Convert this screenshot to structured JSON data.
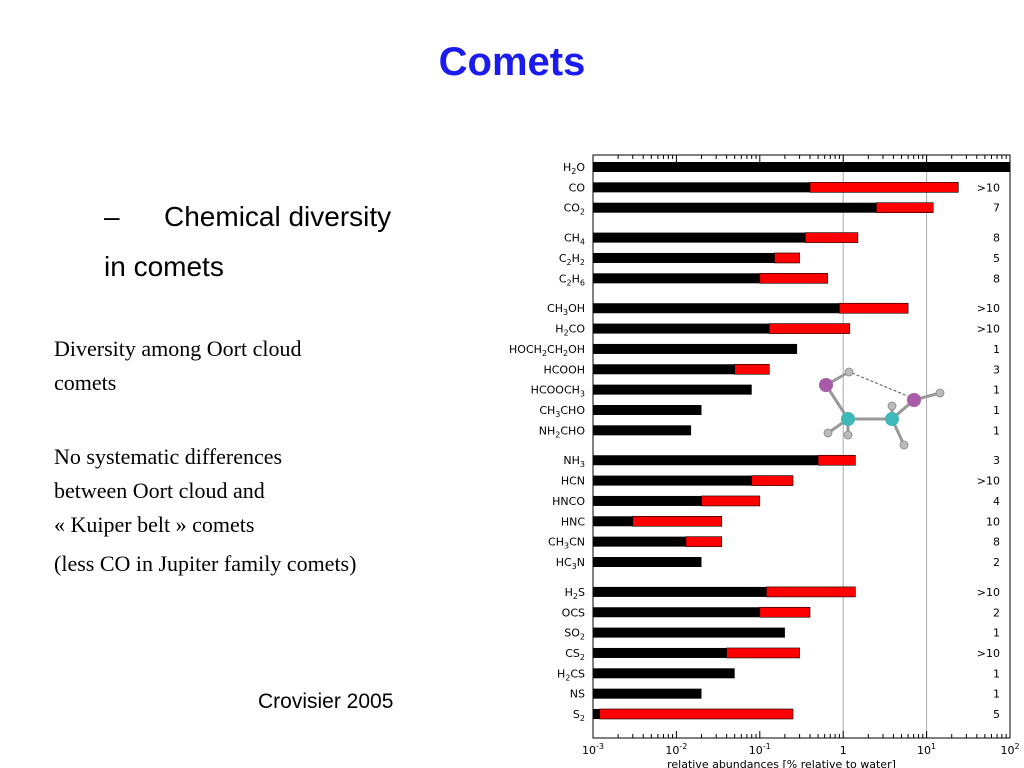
{
  "slide": {
    "title": "Comets",
    "bullet_dash": "–",
    "bullet_line1": "Chemical diversity",
    "bullet_line2": "in comets",
    "para1_line1": "Diversity among Oort cloud",
    "para1_line2": "comets",
    "para2_line1": "No systematic differences",
    "para2_line2": "between Oort cloud and",
    "para2_line3": "« Kuiper belt » comets",
    "para3": "(less CO in Jupiter family comets)",
    "credit": "Crovisier 2005"
  },
  "colors": {
    "title": "#1b1bf0",
    "bar_min": "#000000",
    "bar_range": "#ff0000"
  },
  "chart_data": {
    "type": "bar",
    "orientation": "horizontal",
    "xscale": "log",
    "xlim": [
      0.001,
      100
    ],
    "xlabel": "relative abundances [% relative to water]",
    "xticks": [
      "10-3",
      "10-2",
      "10-1",
      "1",
      "101",
      "102"
    ],
    "grid": "vertical lines at 1 and 10",
    "molecules": [
      {
        "label": "H2O",
        "min": 100,
        "max": 100,
        "count": ""
      },
      {
        "label": "CO",
        "min": 0.4,
        "max": 24,
        "count": ">10"
      },
      {
        "label": "CO2",
        "min": 2.5,
        "max": 12,
        "count": "7"
      },
      {
        "label": "CH4",
        "min": 0.35,
        "max": 1.5,
        "count": "8"
      },
      {
        "label": "C2H2",
        "min": 0.15,
        "max": 0.3,
        "count": "5"
      },
      {
        "label": "C2H6",
        "min": 0.1,
        "max": 0.65,
        "count": "8"
      },
      {
        "label": "CH3OH",
        "min": 0.9,
        "max": 6,
        "count": ">10"
      },
      {
        "label": "H2CO",
        "min": 0.13,
        "max": 1.2,
        "count": ">10"
      },
      {
        "label": "HOCH2CH2OH",
        "min": 0.28,
        "max": 0.28,
        "count": "1"
      },
      {
        "label": "HCOOH",
        "min": 0.05,
        "max": 0.13,
        "count": "3"
      },
      {
        "label": "HCOOCH3",
        "min": 0.08,
        "max": 0.08,
        "count": "1"
      },
      {
        "label": "CH3CHO",
        "min": 0.02,
        "max": 0.02,
        "count": "1"
      },
      {
        "label": "NH2CHO",
        "min": 0.015,
        "max": 0.015,
        "count": "1"
      },
      {
        "label": "NH3",
        "min": 0.5,
        "max": 1.4,
        "count": "3"
      },
      {
        "label": "HCN",
        "min": 0.08,
        "max": 0.25,
        "count": ">10"
      },
      {
        "label": "HNCO",
        "min": 0.02,
        "max": 0.1,
        "count": "4"
      },
      {
        "label": "HNC",
        "min": 0.003,
        "max": 0.035,
        "count": "10"
      },
      {
        "label": "CH3CN",
        "min": 0.013,
        "max": 0.035,
        "count": "8"
      },
      {
        "label": "HC3N",
        "min": 0.02,
        "max": 0.02,
        "count": "2"
      },
      {
        "label": "H2S",
        "min": 0.12,
        "max": 1.4,
        "count": ">10"
      },
      {
        "label": "OCS",
        "min": 0.1,
        "max": 0.4,
        "count": "2"
      },
      {
        "label": "SO2",
        "min": 0.2,
        "max": 0.2,
        "count": "1"
      },
      {
        "label": "CS2",
        "min": 0.04,
        "max": 0.3,
        "count": ">10"
      },
      {
        "label": "H2CS",
        "min": 0.05,
        "max": 0.05,
        "count": "1"
      },
      {
        "label": "NS",
        "min": 0.02,
        "max": 0.02,
        "count": "1"
      },
      {
        "label": "S2",
        "min": 0.0012,
        "max": 0.25,
        "count": "5"
      }
    ],
    "groups": [
      3,
      3,
      7,
      6,
      7
    ]
  }
}
